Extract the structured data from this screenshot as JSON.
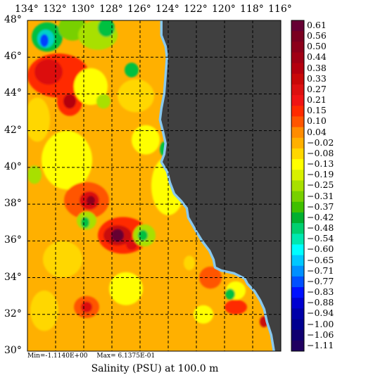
{
  "lon_labels": [
    "134°",
    "132°",
    "130°",
    "128°",
    "126°",
    "124°",
    "122°",
    "120°",
    "118°",
    "116°"
  ],
  "lat_labels": [
    "48°",
    "46°",
    "44°",
    "42°",
    "40°",
    "38°",
    "36°",
    "34°",
    "32°",
    "30°"
  ],
  "colorbar": {
    "labels": [
      "0.61",
      "0.56",
      "0.50",
      "0.44",
      "0.38",
      "0.33",
      "0.27",
      "0.21",
      "0.15",
      "0.10",
      "0.04",
      "−0.02",
      "−0.08",
      "−0.13",
      "−0.19",
      "−0.25",
      "−0.31",
      "−0.37",
      "−0.42",
      "−0.48",
      "−0.54",
      "−0.60",
      "−0.65",
      "−0.71",
      "−0.77",
      "−0.83",
      "−0.88",
      "−0.94",
      "−1.00",
      "−1.06",
      "−1.11"
    ],
    "colors": [
      "#660033",
      "#7a0020",
      "#8c001a",
      "#a00014",
      "#b4000e",
      "#c80808",
      "#dc1010",
      "#f01414",
      "#ff2a00",
      "#ff5500",
      "#ff8c00",
      "#ffb000",
      "#ffd700",
      "#ffff00",
      "#d8f000",
      "#a8e000",
      "#78d000",
      "#40c000",
      "#00b030",
      "#00d070",
      "#00e8b0",
      "#00ffff",
      "#00c8ff",
      "#0090ff",
      "#0050ff",
      "#0010ff",
      "#0000d0",
      "#0000a8",
      "#000090",
      "#100070",
      "#200060"
    ]
  },
  "field": {
    "variable": "Salinity (PSU)",
    "depth_label": "at 100.0 m",
    "min_text": "Min=-1.1140E+00",
    "max_text": "Max= 6.1375E-01",
    "colors": {
      "land": "#404040",
      "background": "#ffb000",
      "coastal_band": "#88c8ee"
    },
    "features": [
      {
        "lon": 132.6,
        "lat": 47.1,
        "rx": 1.1,
        "ry": 0.8,
        "color": "#00c040"
      },
      {
        "lon": 132.7,
        "lat": 47.0,
        "rx": 0.6,
        "ry": 0.5,
        "color": "#00d0c8"
      },
      {
        "lon": 132.8,
        "lat": 46.9,
        "rx": 0.3,
        "ry": 0.35,
        "color": "#0040ff"
      },
      {
        "lon": 130.8,
        "lat": 47.6,
        "rx": 1.0,
        "ry": 0.7,
        "color": "#78d000"
      },
      {
        "lon": 129.0,
        "lat": 47.2,
        "rx": 1.4,
        "ry": 0.8,
        "color": "#a8e000"
      },
      {
        "lon": 128.4,
        "lat": 47.6,
        "rx": 0.6,
        "ry": 0.5,
        "color": "#00c040"
      },
      {
        "lon": 131.8,
        "lat": 45.0,
        "rx": 2.2,
        "ry": 1.2,
        "color": "#ff2a00"
      },
      {
        "lon": 132.5,
        "lat": 45.2,
        "rx": 1.0,
        "ry": 0.7,
        "color": "#dc1010"
      },
      {
        "lon": 131.0,
        "lat": 43.6,
        "rx": 0.9,
        "ry": 0.8,
        "color": "#ff2a00"
      },
      {
        "lon": 131.0,
        "lat": 43.6,
        "rx": 0.45,
        "ry": 0.4,
        "color": "#b4000e"
      },
      {
        "lon": 133.3,
        "lat": 42.6,
        "rx": 0.9,
        "ry": 1.2,
        "color": "#ffd700"
      },
      {
        "lon": 129.5,
        "lat": 44.4,
        "rx": 1.2,
        "ry": 1.0,
        "color": "#ffff00"
      },
      {
        "lon": 128.6,
        "lat": 43.6,
        "rx": 0.5,
        "ry": 0.4,
        "color": "#a8e000"
      },
      {
        "lon": 126.3,
        "lat": 43.9,
        "rx": 1.3,
        "ry": 0.9,
        "color": "#ffd700"
      },
      {
        "lon": 126.6,
        "lat": 45.3,
        "rx": 0.5,
        "ry": 0.4,
        "color": "#00c040"
      },
      {
        "lon": 131.2,
        "lat": 40.4,
        "rx": 1.8,
        "ry": 1.6,
        "color": "#ffff00"
      },
      {
        "lon": 133.5,
        "lat": 39.6,
        "rx": 0.5,
        "ry": 0.5,
        "color": "#a8e000"
      },
      {
        "lon": 129.8,
        "lat": 38.2,
        "rx": 1.6,
        "ry": 1.0,
        "color": "#ff5500"
      },
      {
        "lon": 129.6,
        "lat": 38.2,
        "rx": 0.7,
        "ry": 0.5,
        "color": "#dc1010"
      },
      {
        "lon": 129.5,
        "lat": 38.2,
        "rx": 0.3,
        "ry": 0.25,
        "color": "#8c001a"
      },
      {
        "lon": 129.8,
        "lat": 37.1,
        "rx": 0.7,
        "ry": 0.5,
        "color": "#a8e000"
      },
      {
        "lon": 129.9,
        "lat": 37.0,
        "rx": 0.3,
        "ry": 0.3,
        "color": "#00c040"
      },
      {
        "lon": 127.2,
        "lat": 36.3,
        "rx": 1.8,
        "ry": 1.0,
        "color": "#ff2a00"
      },
      {
        "lon": 127.6,
        "lat": 36.3,
        "rx": 1.0,
        "ry": 0.55,
        "color": "#c80808"
      },
      {
        "lon": 127.6,
        "lat": 36.3,
        "rx": 0.45,
        "ry": 0.35,
        "color": "#660033"
      },
      {
        "lon": 126.6,
        "lat": 35.8,
        "rx": 0.4,
        "ry": 0.3,
        "color": "#dc1010"
      },
      {
        "lon": 125.7,
        "lat": 36.3,
        "rx": 0.8,
        "ry": 0.6,
        "color": "#a8e000"
      },
      {
        "lon": 125.8,
        "lat": 36.3,
        "rx": 0.35,
        "ry": 0.3,
        "color": "#00c040"
      },
      {
        "lon": 131.5,
        "lat": 35.0,
        "rx": 1.4,
        "ry": 1.0,
        "color": "#ffd700"
      },
      {
        "lon": 124.0,
        "lat": 39.0,
        "rx": 1.2,
        "ry": 1.6,
        "color": "#ffff00"
      },
      {
        "lon": 125.6,
        "lat": 41.5,
        "rx": 1.0,
        "ry": 0.8,
        "color": "#ffff00"
      },
      {
        "lon": 124.3,
        "lat": 41.0,
        "rx": 0.3,
        "ry": 0.4,
        "color": "#00c040"
      },
      {
        "lon": 129.8,
        "lat": 32.4,
        "rx": 0.9,
        "ry": 0.6,
        "color": "#ff5500"
      },
      {
        "lon": 129.8,
        "lat": 32.4,
        "rx": 0.4,
        "ry": 0.3,
        "color": "#dc1010"
      },
      {
        "lon": 132.8,
        "lat": 32.2,
        "rx": 1.0,
        "ry": 1.1,
        "color": "#ffd700"
      },
      {
        "lon": 127.0,
        "lat": 33.4,
        "rx": 1.2,
        "ry": 0.9,
        "color": "#ffff00"
      },
      {
        "lon": 121.0,
        "lat": 34.0,
        "rx": 0.8,
        "ry": 0.6,
        "color": "#ff5500"
      },
      {
        "lon": 119.2,
        "lat": 33.3,
        "rx": 0.7,
        "ry": 0.5,
        "color": "#ffff00"
      },
      {
        "lon": 119.6,
        "lat": 33.1,
        "rx": 0.35,
        "ry": 0.3,
        "color": "#00c040"
      },
      {
        "lon": 119.2,
        "lat": 32.4,
        "rx": 0.8,
        "ry": 0.4,
        "color": "#ff2a00"
      },
      {
        "lon": 121.5,
        "lat": 32.0,
        "rx": 0.7,
        "ry": 0.5,
        "color": "#ffff00"
      },
      {
        "lon": 117.2,
        "lat": 31.6,
        "rx": 0.3,
        "ry": 0.3,
        "color": "#c80808"
      },
      {
        "lon": 122.5,
        "lat": 34.8,
        "rx": 0.4,
        "ry": 0.4,
        "color": "#ffd700"
      }
    ]
  }
}
